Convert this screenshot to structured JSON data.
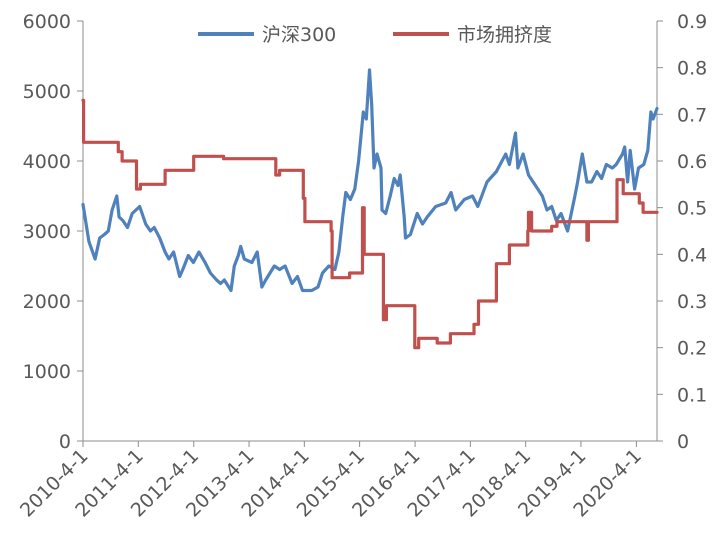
{
  "chart_data": {
    "type": "line",
    "title": "",
    "xlabel": "",
    "ylabel": "",
    "x_ticks": [
      "2010-4-1",
      "2011-4-1",
      "2012-4-1",
      "2013-4-1",
      "2014-4-1",
      "2015-4-1",
      "2016-4-1",
      "2017-4-1",
      "2018-4-1",
      "2019-4-1",
      "2020-4-1"
    ],
    "x_range": [
      "2010-04-01",
      "2020-08-15"
    ],
    "y_left": {
      "ticks": [
        "0",
        "1000",
        "2000",
        "3000",
        "4000",
        "5000",
        "6000"
      ],
      "range": [
        0,
        6000
      ]
    },
    "y_right": {
      "ticks": [
        "0",
        "0.1",
        "0.2",
        "0.3",
        "0.4",
        "0.5",
        "0.6",
        "0.7",
        "0.8",
        "0.9"
      ],
      "range": [
        0,
        0.9
      ]
    },
    "grid": false,
    "legend_position": "top-center",
    "series": [
      {
        "name": "沪深300",
        "axis": "left",
        "color": "#4f81bd",
        "points": [
          [
            "2010-04-01",
            3380
          ],
          [
            "2010-05-10",
            2850
          ],
          [
            "2010-06-20",
            2600
          ],
          [
            "2010-07-20",
            2900
          ],
          [
            "2010-08-20",
            2950
          ],
          [
            "2010-09-15",
            3000
          ],
          [
            "2010-10-10",
            3300
          ],
          [
            "2010-11-10",
            3500
          ],
          [
            "2010-11-25",
            3200
          ],
          [
            "2010-12-20",
            3150
          ],
          [
            "2011-01-20",
            3050
          ],
          [
            "2011-02-20",
            3250
          ],
          [
            "2011-04-10",
            3350
          ],
          [
            "2011-05-20",
            3100
          ],
          [
            "2011-06-20",
            3000
          ],
          [
            "2011-07-15",
            3050
          ],
          [
            "2011-08-20",
            2900
          ],
          [
            "2011-09-25",
            2700
          ],
          [
            "2011-10-20",
            2600
          ],
          [
            "2011-11-20",
            2700
          ],
          [
            "2011-12-30",
            2350
          ],
          [
            "2012-01-20",
            2450
          ],
          [
            "2012-02-25",
            2650
          ],
          [
            "2012-03-30",
            2550
          ],
          [
            "2012-05-05",
            2700
          ],
          [
            "2012-06-15",
            2550
          ],
          [
            "2012-07-20",
            2400
          ],
          [
            "2012-08-30",
            2300
          ],
          [
            "2012-09-25",
            2250
          ],
          [
            "2012-10-20",
            2300
          ],
          [
            "2012-12-03",
            2150
          ],
          [
            "2012-12-25",
            2500
          ],
          [
            "2013-01-20",
            2650
          ],
          [
            "2013-02-05",
            2780
          ],
          [
            "2013-03-01",
            2600
          ],
          [
            "2013-04-20",
            2550
          ],
          [
            "2013-05-25",
            2700
          ],
          [
            "2013-06-25",
            2200
          ],
          [
            "2013-07-20",
            2300
          ],
          [
            "2013-09-15",
            2500
          ],
          [
            "2013-10-20",
            2450
          ],
          [
            "2013-11-25",
            2500
          ],
          [
            "2014-01-10",
            2250
          ],
          [
            "2014-02-15",
            2350
          ],
          [
            "2014-03-20",
            2150
          ],
          [
            "2014-05-20",
            2150
          ],
          [
            "2014-06-30",
            2200
          ],
          [
            "2014-07-30",
            2400
          ],
          [
            "2014-09-10",
            2500
          ],
          [
            "2014-10-20",
            2450
          ],
          [
            "2014-11-15",
            2700
          ],
          [
            "2014-12-10",
            3200
          ],
          [
            "2014-12-31",
            3550
          ],
          [
            "2015-01-30",
            3450
          ],
          [
            "2015-02-28",
            3600
          ],
          [
            "2015-03-25",
            4000
          ],
          [
            "2015-04-25",
            4700
          ],
          [
            "2015-05-15",
            4600
          ],
          [
            "2015-06-05",
            5300
          ],
          [
            "2015-06-20",
            4800
          ],
          [
            "2015-07-05",
            3900
          ],
          [
            "2015-07-25",
            4100
          ],
          [
            "2015-08-20",
            3900
          ],
          [
            "2015-08-27",
            3300
          ],
          [
            "2015-09-20",
            3250
          ],
          [
            "2015-10-20",
            3500
          ],
          [
            "2015-11-15",
            3750
          ],
          [
            "2015-12-10",
            3650
          ],
          [
            "2015-12-25",
            3800
          ],
          [
            "2016-01-20",
            3200
          ],
          [
            "2016-01-29",
            2900
          ],
          [
            "2016-03-01",
            2950
          ],
          [
            "2016-04-15",
            3250
          ],
          [
            "2016-05-20",
            3100
          ],
          [
            "2016-06-20",
            3200
          ],
          [
            "2016-08-15",
            3350
          ],
          [
            "2016-10-20",
            3400
          ],
          [
            "2016-11-25",
            3550
          ],
          [
            "2016-12-25",
            3300
          ],
          [
            "2017-02-20",
            3450
          ],
          [
            "2017-04-15",
            3500
          ],
          [
            "2017-05-20",
            3350
          ],
          [
            "2017-07-20",
            3700
          ],
          [
            "2017-09-20",
            3850
          ],
          [
            "2017-11-20",
            4100
          ],
          [
            "2017-12-15",
            3950
          ],
          [
            "2018-01-24",
            4400
          ],
          [
            "2018-02-09",
            3900
          ],
          [
            "2018-03-15",
            4100
          ],
          [
            "2018-04-20",
            3800
          ],
          [
            "2018-06-20",
            3600
          ],
          [
            "2018-07-20",
            3500
          ],
          [
            "2018-08-20",
            3300
          ],
          [
            "2018-09-20",
            3350
          ],
          [
            "2018-10-20",
            3150
          ],
          [
            "2018-11-20",
            3250
          ],
          [
            "2019-01-03",
            3000
          ],
          [
            "2019-02-20",
            3500
          ],
          [
            "2019-03-10",
            3700
          ],
          [
            "2019-04-10",
            4100
          ],
          [
            "2019-05-10",
            3700
          ],
          [
            "2019-06-10",
            3700
          ],
          [
            "2019-07-15",
            3850
          ],
          [
            "2019-08-15",
            3750
          ],
          [
            "2019-09-15",
            3950
          ],
          [
            "2019-10-25",
            3900
          ],
          [
            "2019-11-20",
            3950
          ],
          [
            "2019-12-31",
            4100
          ],
          [
            "2020-01-15",
            4200
          ],
          [
            "2020-02-03",
            3700
          ],
          [
            "2020-02-20",
            4150
          ],
          [
            "2020-03-20",
            3600
          ],
          [
            "2020-04-15",
            3900
          ],
          [
            "2020-05-20",
            3950
          ],
          [
            "2020-06-15",
            4150
          ],
          [
            "2020-07-06",
            4700
          ],
          [
            "2020-07-20",
            4600
          ],
          [
            "2020-08-15",
            4750
          ]
        ]
      },
      {
        "name": "市场拥挤度",
        "axis": "right",
        "color": "#c0504d",
        "points": [
          [
            "2010-04-01",
            0.73
          ],
          [
            "2010-04-05",
            0.64
          ],
          [
            "2010-11-20",
            0.62
          ],
          [
            "2010-12-15",
            0.6
          ],
          [
            "2011-03-20",
            0.54
          ],
          [
            "2011-04-15",
            0.55
          ],
          [
            "2011-09-25",
            0.58
          ],
          [
            "2012-04-01",
            0.61
          ],
          [
            "2012-10-15",
            0.605
          ],
          [
            "2013-09-25",
            0.57
          ],
          [
            "2013-10-20",
            0.58
          ],
          [
            "2014-03-25",
            0.52
          ],
          [
            "2014-04-05",
            0.47
          ],
          [
            "2014-09-25",
            0.45
          ],
          [
            "2014-10-01",
            0.35
          ],
          [
            "2015-01-25",
            0.36
          ],
          [
            "2015-04-20",
            0.5
          ],
          [
            "2015-05-01",
            0.4
          ],
          [
            "2015-09-05",
            0.26
          ],
          [
            "2015-09-25",
            0.29
          ],
          [
            "2016-03-30",
            0.2
          ],
          [
            "2016-04-25",
            0.22
          ],
          [
            "2016-08-25",
            0.21
          ],
          [
            "2016-11-20",
            0.23
          ],
          [
            "2017-04-25",
            0.25
          ],
          [
            "2017-05-25",
            0.3
          ],
          [
            "2017-09-20",
            0.38
          ],
          [
            "2017-12-15",
            0.42
          ],
          [
            "2018-04-15",
            0.45
          ],
          [
            "2018-04-20",
            0.49
          ],
          [
            "2018-05-10",
            0.45
          ],
          [
            "2018-09-20",
            0.46
          ],
          [
            "2018-10-25",
            0.47
          ],
          [
            "2019-05-10",
            0.43
          ],
          [
            "2019-05-20",
            0.47
          ],
          [
            "2019-09-15",
            0.47
          ],
          [
            "2019-11-25",
            0.56
          ],
          [
            "2020-01-05",
            0.53
          ],
          [
            "2020-04-20",
            0.51
          ],
          [
            "2020-05-15",
            0.49
          ],
          [
            "2020-08-15",
            0.49
          ]
        ]
      }
    ]
  }
}
